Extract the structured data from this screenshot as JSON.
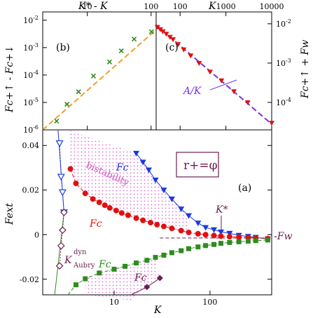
{
  "chart_data": [
    {
      "panel": "b",
      "type": "scatter",
      "panel_label": "(b)",
      "xlabel": "K* - K",
      "ylabel": "Fc+↑ - Fc+↓",
      "xscale": "log",
      "yscale": "log",
      "xlim": [
        2,
        120
      ],
      "ylim": [
        1e-06,
        0.02
      ],
      "x_ticks": [
        {
          "v": 10,
          "label": "10"
        },
        {
          "v": 100,
          "label": "100"
        }
      ],
      "y_ticks": [
        {
          "v": 1e-06,
          "label": "10-6"
        },
        {
          "v": 1e-05,
          "label": "10-5"
        },
        {
          "v": 0.0001,
          "label": "10-4"
        },
        {
          "v": 0.001,
          "label": "10-3"
        },
        {
          "v": 0.01,
          "label": "10-2"
        }
      ],
      "series": [
        {
          "kind": "points",
          "color": "#2e8b1e",
          "x": [
            3.3,
            4.8,
            7.3,
            12.5,
            22.3,
            34.1,
            54.2,
            101.3
          ],
          "y": [
            2.1e-06,
            8.6e-06,
            2.45e-05,
            9.2e-05,
            0.0003,
            0.00076,
            0.00205,
            0.0038
          ]
        },
        {
          "kind": "fit",
          "color": "#f0a030",
          "x": [
            2,
            120
          ],
          "y": [
            1e-06,
            0.0045
          ]
        }
      ]
    },
    {
      "panel": "c",
      "type": "scatter",
      "panel_label": "(c)",
      "xlabel": "K",
      "ylabel": "Fc+↑ + Fw",
      "xscale": "log",
      "yscale": "log",
      "xlim": [
        30,
        10000
      ],
      "ylim": [
        2e-05,
        0.02
      ],
      "x_ticks": [
        {
          "v": 100,
          "label": "100"
        },
        {
          "v": 1000,
          "label": "1000"
        },
        {
          "v": 10000,
          "label": "10000"
        }
      ],
      "y_ticks": [
        {
          "v": 0.0001,
          "label": "10-4"
        },
        {
          "v": 0.001,
          "label": "10-3"
        },
        {
          "v": 0.01,
          "label": "10-2"
        }
      ],
      "annotation": "A/K",
      "series": [
        {
          "kind": "points",
          "color": "#e01010",
          "x": [
            32,
            37,
            42,
            50,
            60,
            70,
            90,
            120,
            170,
            260,
            450,
            800,
            1500,
            3000,
            10000
          ],
          "y": [
            0.0082,
            0.0072,
            0.0064,
            0.0055,
            0.0046,
            0.004,
            0.003,
            0.0022,
            0.00155,
            0.001,
            0.0006,
            0.00036,
            0.00019,
            0.0001,
            3e-05
          ]
        },
        {
          "kind": "fit",
          "color": "#7733dd",
          "x": [
            30,
            10000
          ],
          "y": [
            0.0093,
            2.8e-05
          ]
        }
      ]
    },
    {
      "panel": "a",
      "type": "line",
      "panel_label": "(a)",
      "xlabel": "K",
      "ylabel": "Fext",
      "xscale": "log",
      "xlim": [
        1.8,
        440
      ],
      "ylim": [
        -0.027,
        0.047
      ],
      "x_ticks": [
        {
          "v": 10,
          "label": "10"
        },
        {
          "v": 100,
          "label": "100"
        }
      ],
      "y_ticks": [
        {
          "v": -0.02,
          "label": "-0.02"
        },
        {
          "v": 0,
          "label": "0"
        },
        {
          "v": 0.02,
          "label": "0.02"
        },
        {
          "v": 0.04,
          "label": "0.04"
        }
      ],
      "box_label": "r+=φ",
      "annotations": {
        "bistability": "bistability",
        "fc_up": "Fc",
        "fc_down": "Fc",
        "fc_neg_up": "Fc",
        "fc_neg_down": "Fc",
        "kstar": "K*",
        "fw": "-Fw",
        "kdyn": "K",
        "kdyn_sup": "dyn",
        "kdyn_sub": "Aubry"
      },
      "series": [
        {
          "name": "Fc+ up",
          "marker": "triangle-down",
          "color": "#1a3ae0",
          "x": [
            17,
            20,
            23,
            27,
            33,
            40,
            50,
            60,
            75,
            90,
            110,
            130,
            160,
            200,
            250,
            300,
            400
          ],
          "y": [
            0.0365,
            0.0325,
            0.029,
            0.0245,
            0.02,
            0.016,
            0.0115,
            0.0085,
            0.0052,
            0.0032,
            0.0022,
            0.0012,
            0.0006,
            -0.0003,
            -0.0008,
            -0.0012,
            -0.0019
          ]
        },
        {
          "name": "Fc+ down",
          "marker": "circle",
          "color": "#e01010",
          "x": [
            3.5,
            4,
            5,
            6,
            7,
            8,
            9,
            10.5,
            12,
            14,
            17,
            20,
            24,
            28,
            33,
            40,
            50,
            60,
            75,
            90,
            110,
            130,
            160,
            200,
            250,
            300,
            400
          ],
          "y": [
            0.0295,
            0.023,
            0.0185,
            0.016,
            0.0145,
            0.0132,
            0.012,
            0.0108,
            0.0097,
            0.0087,
            0.0074,
            0.0064,
            0.0054,
            0.0045,
            0.0037,
            0.0028,
            0.0018,
            0.001,
            0.0004,
            0.0,
            -0.0004,
            -0.0007,
            -0.0009,
            -0.0011,
            -0.0013,
            -0.0015,
            -0.0018
          ]
        },
        {
          "name": "Fc- up",
          "marker": "square",
          "color": "#2e8b1e",
          "x": [
            3.3,
            4,
            5,
            7,
            10,
            13,
            17,
            22,
            27,
            33,
            40,
            50,
            60,
            75,
            90,
            110,
            130,
            160,
            200,
            250,
            300,
            400
          ],
          "y": [
            -0.0305,
            -0.0225,
            -0.0198,
            -0.0172,
            -0.0155,
            -0.0142,
            -0.0127,
            -0.0115,
            -0.0102,
            -0.0092,
            -0.0081,
            -0.0072,
            -0.0063,
            -0.0055,
            -0.0049,
            -0.0044,
            -0.0039,
            -0.0035,
            -0.0032,
            -0.0029,
            -0.0027,
            -0.0024
          ]
        },
        {
          "name": "Fc- down",
          "marker": "diamond",
          "color": "#6b1f4f",
          "x": [
            15,
            22,
            30
          ],
          "y": [
            -0.0295,
            -0.0235,
            -0.0195
          ]
        },
        {
          "name": "Aubry open",
          "marker": "triangle-down-open",
          "color": "#1a3ae0",
          "x": [
            2.7,
            2.8,
            2.9,
            3.0
          ],
          "y": [
            0.041,
            0.026,
            0.019,
            0.01
          ]
        },
        {
          "name": "Aubry open lower",
          "marker": "diamond-open",
          "color": "#6b1f4f",
          "x": [
            3.0,
            2.9,
            2.8,
            2.7
          ],
          "y": [
            0.01,
            0.002,
            -0.005,
            -0.014
          ]
        }
      ]
    }
  ]
}
